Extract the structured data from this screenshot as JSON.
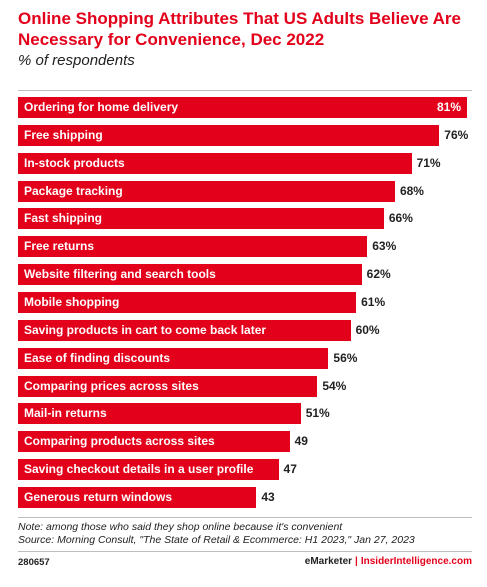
{
  "chart_data": {
    "type": "bar",
    "orientation": "horizontal",
    "title": "Online Shopping Attributes That US Adults Believe Are Necessary for Convenience, Dec 2022",
    "subtitle": "% of respondents",
    "categories": [
      "Ordering for home delivery",
      "Free shipping",
      "In-stock products",
      "Package tracking",
      "Fast shipping",
      "Free returns",
      "Website filtering and search tools",
      "Mobile shopping",
      "Saving products in cart to come back later",
      "Ease of finding discounts",
      "Comparing prices across sites",
      "Mail-in returns",
      "Comparing products across sites",
      "Saving checkout details in a user profile",
      "Generous return windows"
    ],
    "values": [
      81,
      76,
      71,
      68,
      66,
      63,
      62,
      61,
      60,
      56,
      54,
      51,
      49,
      47,
      43
    ],
    "value_labels": [
      "81%",
      "76%",
      "71%",
      "68%",
      "66%",
      "63%",
      "62%",
      "61%",
      "60%",
      "56%",
      "54%",
      "51%",
      "49",
      "47",
      "43"
    ],
    "xlim": [
      0,
      81
    ],
    "bar_color": "#e2001a"
  },
  "footer": {
    "note": "Note: among those who said they shop online because it's convenient",
    "source": "Source: Morning Consult, \"The State of Retail & Ecommerce: H1 2023,\" Jan 27, 2023",
    "chart_id": "280657",
    "brand_left": "eMarketer",
    "brand_sep": "|",
    "brand_right": "InsiderIntelligence.com"
  }
}
